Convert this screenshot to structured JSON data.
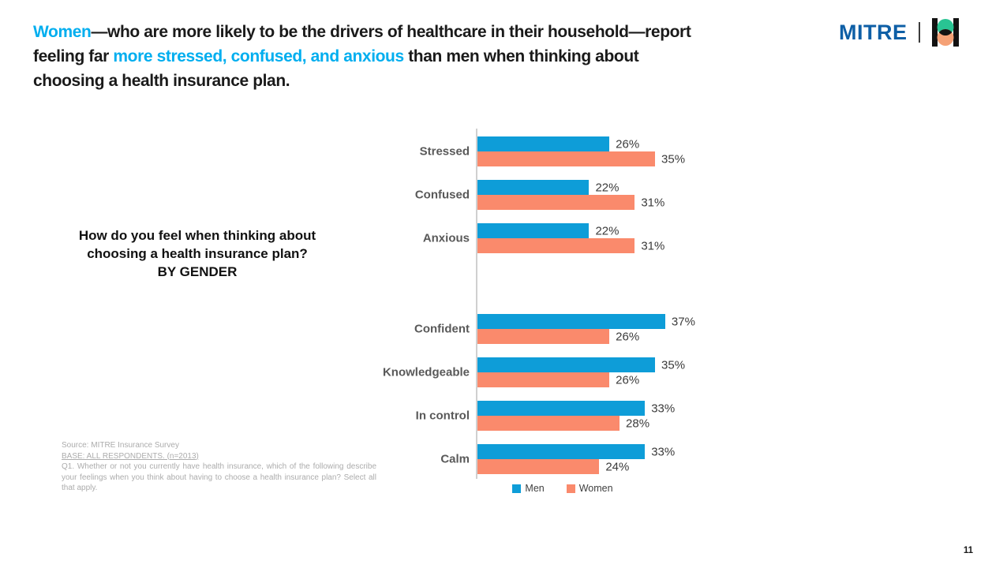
{
  "slide": {
    "page_number": "11"
  },
  "header": {
    "highlight_color": "#00AEEF",
    "title_lines": [
      [
        {
          "text": "Women",
          "highlight": true
        },
        {
          "text": "—who are more likely to be the drivers of healthcare in their household—report",
          "highlight": false
        }
      ],
      [
        {
          "text": "feeling far ",
          "highlight": false
        },
        {
          "text": "more stressed, confused, and anxious",
          "highlight": true
        },
        {
          "text": " than men when thinking about",
          "highlight": false
        }
      ],
      [
        {
          "text": "choosing a health insurance plan.",
          "highlight": false
        }
      ]
    ]
  },
  "logo": {
    "wordmark": "MITRE",
    "colors": {
      "wordmark": "#0E5FA6",
      "icon_green": "#29C493",
      "icon_orange": "#F5A176",
      "icon_black": "#121212"
    }
  },
  "question": {
    "lines": [
      "How do you feel when thinking about",
      "choosing a health insurance plan?",
      "BY GENDER"
    ]
  },
  "chart_data": {
    "type": "bar",
    "orientation": "horizontal",
    "title": "How do you feel when thinking about choosing a health insurance plan? BY GENDER",
    "categories": [
      "Stressed",
      "Confused",
      "Anxious",
      "Confident",
      "Knowledgeable",
      "In control",
      "Calm"
    ],
    "separator_after_index": 2,
    "series": [
      {
        "name": "Men",
        "color": "#0E9DD8",
        "values": [
          26,
          22,
          22,
          37,
          35,
          33,
          33
        ]
      },
      {
        "name": "Women",
        "color": "#FA8A6C",
        "values": [
          35,
          31,
          31,
          26,
          26,
          28,
          24
        ]
      }
    ],
    "value_suffix": "%",
    "xlim": [
      0,
      40
    ],
    "grid": false,
    "legend_position": "bottom"
  },
  "source": {
    "line1": "Source: MITRE Insurance Survey",
    "line2": "BASE: ALL RESPONDENTS. (n=2013)",
    "line3": "Q1. Whether or not you currently have health insurance, which of the following describe your feelings when you think about having to choose a health insurance plan? Select all that apply."
  }
}
